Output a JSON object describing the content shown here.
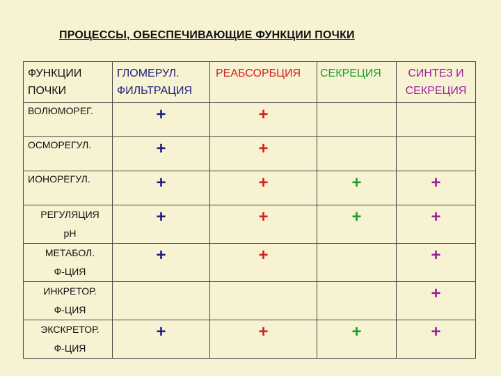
{
  "title": "ПРОЦЕССЫ, ОБЕСПЕЧИВАЮЩИЕ ФУНКЦИИ ПОЧКИ",
  "columns": [
    {
      "lines": [
        "ФУНКЦИИ",
        "ПОЧКИ"
      ],
      "color": "#111111"
    },
    {
      "lines": [
        "ГЛОМЕРУЛ.",
        "ФИЛЬТРАЦИЯ"
      ],
      "color": "#1e1e80"
    },
    {
      "lines": [
        "РЕАБСОРБЦИЯ"
      ],
      "color": "#d42020"
    },
    {
      "lines": [
        "СЕКРЕЦИЯ"
      ],
      "color": "#18a028"
    },
    {
      "lines": [
        "СИНТЕЗ И",
        "СЕКРЕЦИЯ"
      ],
      "color": "#9a1f9a"
    }
  ],
  "marker": "+",
  "rows": [
    {
      "label": [
        "ВОЛЮМОРЕГ."
      ],
      "marks": [
        "+",
        "+",
        "",
        ""
      ]
    },
    {
      "label": [
        "ОСМОРЕГУЛ."
      ],
      "marks": [
        "+",
        "+",
        "",
        ""
      ]
    },
    {
      "label": [
        "ИОНОРЕГУЛ."
      ],
      "marks": [
        "+",
        "+",
        "+",
        "+"
      ]
    },
    {
      "label": [
        "РЕГУЛЯЦИЯ",
        "pH"
      ],
      "marks": [
        "+",
        "+",
        "+",
        "+"
      ]
    },
    {
      "label": [
        "МЕТАБОЛ.",
        "Ф-ЦИЯ"
      ],
      "marks": [
        "+",
        "+",
        "",
        "+"
      ]
    },
    {
      "label": [
        "ИНКРЕТОР.",
        "Ф-ЦИЯ"
      ],
      "marks": [
        "",
        "",
        "",
        "+"
      ]
    },
    {
      "label": [
        "ЭКСКРЕТОР.",
        "Ф-ЦИЯ"
      ],
      "marks": [
        "+",
        "+",
        "+",
        "+"
      ]
    }
  ]
}
